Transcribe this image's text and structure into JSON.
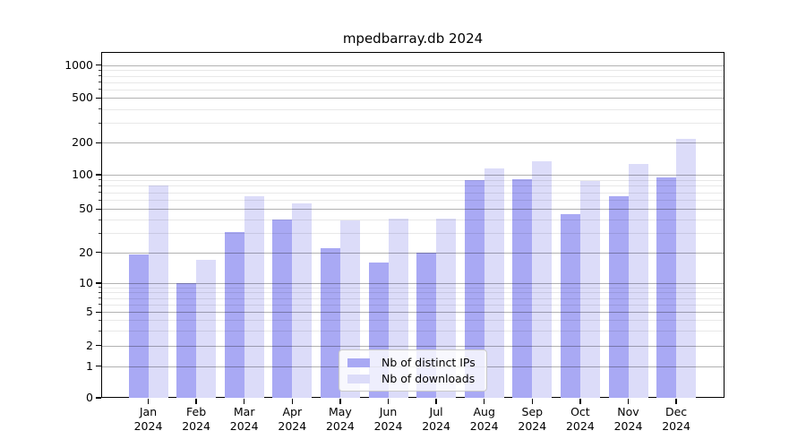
{
  "title": "mpedbarray.db 2024",
  "colors": {
    "distinct_ips": "#a9a9f4",
    "downloads": "#dcdcf9",
    "axis": "#000000",
    "grid_major": "#b3b3b3",
    "grid_minor": "#ebebeb",
    "legend_border": "#c9c9c9"
  },
  "legend": {
    "items": [
      {
        "label": "Nb of distinct IPs",
        "color": "#a9a9f4"
      },
      {
        "label": "Nb of downloads",
        "color": "#dcdcf9"
      }
    ]
  },
  "axes": {
    "y_tick_labels": [
      "0",
      "1",
      "2",
      "5",
      "10",
      "20",
      "50",
      "100",
      "200",
      "500",
      "1000"
    ],
    "x_month_labels": [
      "Jan",
      "Feb",
      "Mar",
      "Apr",
      "May",
      "Jun",
      "Jul",
      "Aug",
      "Sep",
      "Oct",
      "Nov",
      "Dec"
    ],
    "x_year_label": "2024"
  },
  "chart_data": {
    "type": "bar",
    "title": "mpedbarray.db 2024",
    "categories": [
      "Jan 2024",
      "Feb 2024",
      "Mar 2024",
      "Apr 2024",
      "May 2024",
      "Jun 2024",
      "Jul 2024",
      "Aug 2024",
      "Sep 2024",
      "Oct 2024",
      "Nov 2024",
      "Dec 2024"
    ],
    "series": [
      {
        "name": "Nb of distinct IPs",
        "color": "#a9a9f4",
        "values": [
          19,
          10,
          31,
          40,
          22,
          16,
          20,
          90,
          92,
          45,
          65,
          95
        ]
      },
      {
        "name": "Nb of downloads",
        "color": "#dcdcf9",
        "values": [
          80,
          17,
          65,
          56,
          39,
          41,
          41,
          115,
          135,
          88,
          127,
          215
        ]
      }
    ],
    "xlabel": "",
    "ylabel": "",
    "yscale": "symlog",
    "y_ticks": [
      0,
      1,
      2,
      5,
      10,
      20,
      50,
      100,
      200,
      500,
      1000
    ],
    "y_minor_ticks": [
      3,
      4,
      6,
      7,
      8,
      9,
      30,
      40,
      60,
      70,
      80,
      90,
      300,
      400,
      600,
      700,
      800,
      900
    ],
    "ylim": [
      0,
      1320
    ],
    "grid": true,
    "grid_over_bars": true,
    "legend_position": "lower center"
  }
}
